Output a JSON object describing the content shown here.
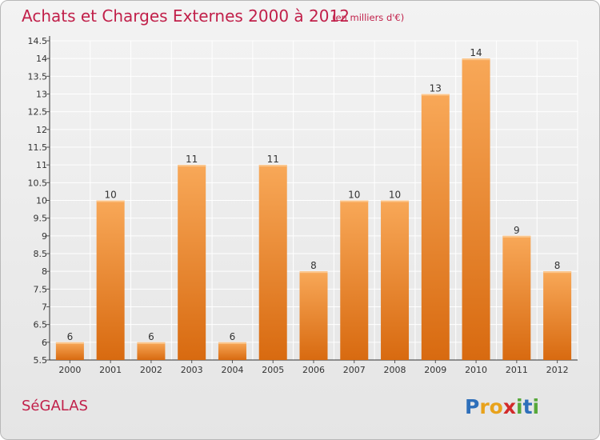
{
  "chart_data": {
    "type": "bar",
    "title": "Achats et Charges Externes 2000 à 2012",
    "subtitle": "(en milliers d'€)",
    "categories": [
      "2000",
      "2001",
      "2002",
      "2003",
      "2004",
      "2005",
      "2006",
      "2007",
      "2008",
      "2009",
      "2010",
      "2011",
      "2012"
    ],
    "values": [
      6,
      10,
      6,
      11,
      6,
      11,
      8,
      10,
      10,
      13,
      14,
      9,
      8
    ],
    "value_labels": [
      "6",
      "10",
      "6",
      "11",
      "6",
      "11",
      "8",
      "10",
      "10",
      "13",
      "14",
      "9",
      "8"
    ],
    "ylim": [
      5.5,
      14.5
    ],
    "y_ticks": [
      5.5,
      6,
      6.5,
      7,
      7.5,
      8,
      8.5,
      9,
      9.5,
      10,
      10.5,
      11,
      11.5,
      12,
      12.5,
      13,
      13.5,
      14,
      14.5
    ],
    "y_tick_labels": [
      "5.5",
      "6",
      "6.5",
      "7",
      "7.5",
      "8",
      "8.5",
      "9",
      "9.5",
      "10",
      "10.5",
      "11",
      "11.5",
      "12",
      "12.5",
      "13",
      "13.5",
      "14",
      "14.5"
    ],
    "xlabel": "",
    "ylabel": "",
    "grid": true,
    "bar_color_top": "#f8a858",
    "bar_color_bottom": "#d86a10"
  },
  "place_name": "SéGALAS",
  "logo": {
    "letters": [
      "P",
      "r",
      "o",
      "x",
      "i",
      "t",
      "i"
    ],
    "colors": [
      "#2e6fba",
      "#e8a21c",
      "#e8a21c",
      "#d22a2a",
      "#57a83a",
      "#2e6fba",
      "#57a83a"
    ]
  },
  "colors": {
    "title": "#c1204a",
    "background": "#ececec",
    "grid": "#ffffff"
  }
}
